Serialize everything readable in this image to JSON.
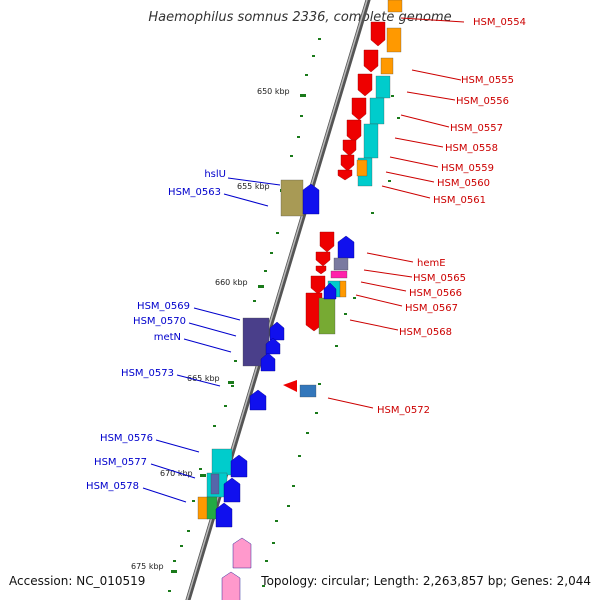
{
  "title": "Haemophilus somnus 2336, complete genome",
  "footer": {
    "accession_label": "Accession:",
    "accession": "NC_010519",
    "topology_label": "Topology:",
    "topology": "circular",
    "length_label": "Length:",
    "length": "2,263,857 bp",
    "genes_label": "Genes:",
    "genes": "2,044"
  },
  "colors": {
    "backbone": "#777777",
    "tick": "#1a7a1a",
    "forward_label": "#0000cc",
    "reverse_label": "#cc0000"
  },
  "ticks": [
    {
      "label": "650 kbp",
      "kbp": 650
    },
    {
      "label": "655 kbp",
      "kbp": 655
    },
    {
      "label": "660 kbp",
      "kbp": 660
    },
    {
      "label": "665 kbp",
      "kbp": 665
    },
    {
      "label": "670 kbp",
      "kbp": 670
    },
    {
      "label": "675 kbp",
      "kbp": 675
    }
  ],
  "reverse_genes": [
    {
      "label": "HSM_0554",
      "color": "#ee0000"
    },
    {
      "label": "HSM_0555",
      "color": "#ee0000"
    },
    {
      "label": "HSM_0556",
      "color": "#ee0000"
    },
    {
      "label": "HSM_0557",
      "color": "#ee0000"
    },
    {
      "label": "HSM_0558",
      "color": "#ee0000"
    },
    {
      "label": "HSM_0559",
      "color": "#ee0000"
    },
    {
      "label": "HSM_0560",
      "color": "#ee0000"
    },
    {
      "label": "HSM_0561",
      "color": "#ee0000"
    },
    {
      "label": "hemE",
      "color": "#ee0000"
    },
    {
      "label": "HSM_0565",
      "color": "#ee0000"
    },
    {
      "label": "HSM_0566",
      "color": "#ee0000"
    },
    {
      "label": "HSM_0567",
      "color": "#ee0000"
    },
    {
      "label": "HSM_0568",
      "color": "#ee0000"
    },
    {
      "label": "HSM_0572",
      "color": "#ee0000"
    }
  ],
  "forward_genes": [
    {
      "label": "hslU",
      "color": "#1010ee"
    },
    {
      "label": "HSM_0563",
      "color": "#1010ee"
    },
    {
      "label": "HSM_0569",
      "color": "#1010ee"
    },
    {
      "label": "HSM_0570",
      "color": "#1010ee"
    },
    {
      "label": "metN",
      "color": "#1010ee"
    },
    {
      "label": "HSM_0573",
      "color": "#1010ee"
    },
    {
      "label": "HSM_0576",
      "color": "#1010ee"
    },
    {
      "label": "HSM_0577",
      "color": "#1010ee"
    },
    {
      "label": "HSM_0578",
      "color": "#1010ee"
    },
    {
      "label": "",
      "color": "#ff99cc"
    }
  ]
}
